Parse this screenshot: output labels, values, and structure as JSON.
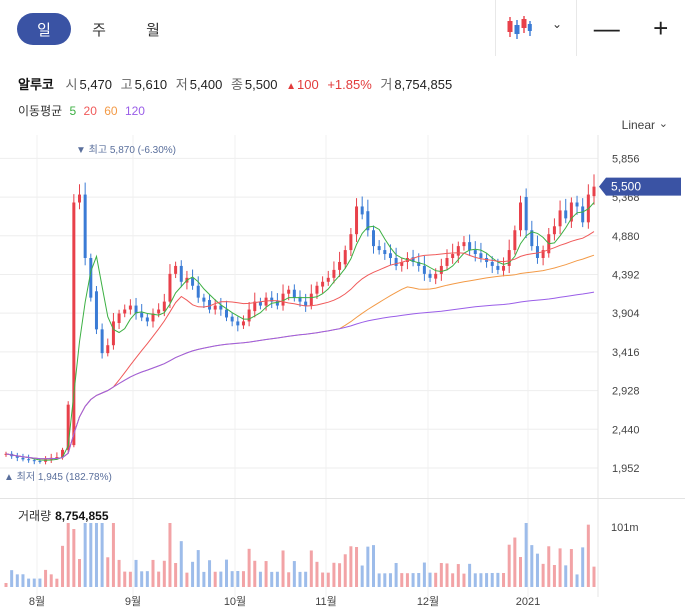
{
  "tabs": [
    "일",
    "주",
    "월"
  ],
  "stock": {
    "name": "알루코",
    "open_label": "시",
    "open": "5,470",
    "high_label": "고",
    "high": "5,610",
    "low_label": "저",
    "low": "5,400",
    "close_label": "종",
    "close": "5,500",
    "change_arrow": "▲",
    "change": "100",
    "change_pct": "+1.85%",
    "volume_label": "거",
    "volume": "8,754,855"
  },
  "moving_average": {
    "title": "이동평균",
    "periods": [
      {
        "label": "5",
        "color": "#3cb043"
      },
      {
        "label": "20",
        "color": "#f05a5a"
      },
      {
        "label": "60",
        "color": "#f39a46"
      },
      {
        "label": "120",
        "color": "#9a5ee8"
      }
    ]
  },
  "scale_mode": "Linear",
  "chart_data": {
    "type": "candlestick",
    "y_ticks": [
      "5,856",
      "5,368",
      "4,880",
      "4,392",
      "3,904",
      "3,416",
      "2,928",
      "2,440",
      "1,952"
    ],
    "x_ticks": [
      "8월",
      "9월",
      "10월",
      "11월",
      "12월",
      "2021"
    ],
    "ylim": [
      1800,
      6000
    ],
    "current_price_label": "5,500",
    "current_price": 5500,
    "high_marker": "최고 5,870 (-6.30%)",
    "low_marker": "최저 1,945 (182.78%)",
    "volume_title": "거래량",
    "volume_value": "8,754,855",
    "volume_tick": "101m",
    "up_color": "#e8404a",
    "down_color": "#3a7bd5",
    "closes": [
      2130,
      2100,
      2080,
      2060,
      2050,
      2040,
      2030,
      2060,
      2080,
      2090,
      2180,
      2750,
      5300,
      5400,
      4600,
      4100,
      3700,
      3400,
      3500,
      3800,
      3900,
      3950,
      4000,
      3900,
      3850,
      3800,
      3900,
      3950,
      4050,
      4400,
      4500,
      4300,
      4350,
      4250,
      4100,
      4050,
      3950,
      4000,
      3950,
      3850,
      3800,
      3750,
      3800,
      3950,
      4050,
      4000,
      4100,
      4050,
      4000,
      4150,
      4200,
      4100,
      4050,
      4000,
      4150,
      4250,
      4300,
      4350,
      4450,
      4550,
      4700,
      4900,
      5250,
      5150,
      4950,
      4750,
      4700,
      4650,
      4600,
      4500,
      4550,
      4600,
      4550,
      4500,
      4400,
      4350,
      4400,
      4500,
      4600,
      4650,
      4750,
      4800,
      4700,
      4650,
      4600,
      4550,
      4500,
      4450,
      4500,
      4700,
      4950,
      5300,
      4950,
      4750,
      4600,
      4700,
      4900,
      5000,
      5200,
      5100,
      5300,
      5250,
      5050,
      5400,
      5500
    ]
  }
}
